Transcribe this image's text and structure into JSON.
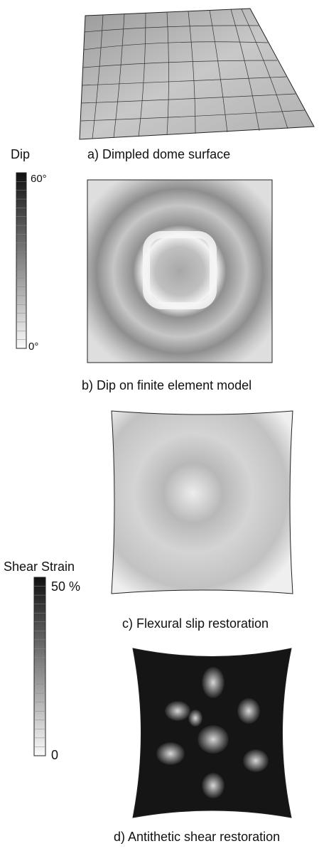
{
  "panels": [
    {
      "caption": "a) Dimpled dome surface"
    },
    {
      "caption": "b) Dip on finite element model"
    },
    {
      "caption": "c) Flexural slip restoration"
    },
    {
      "caption": "d)  Antithetic shear restoration"
    }
  ],
  "colorbars": [
    {
      "title": "Dip",
      "max_label": "60°",
      "min_label": "0°"
    },
    {
      "title": "Shear Strain",
      "max_label": "50 %",
      "min_label": "0"
    }
  ]
}
